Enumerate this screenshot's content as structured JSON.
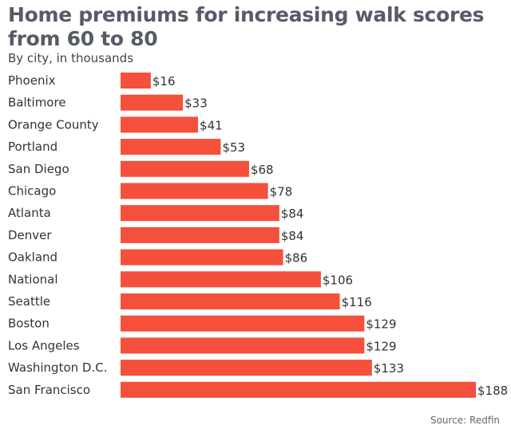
{
  "chart_data": {
    "type": "bar",
    "orientation": "horizontal",
    "title": "Home premiums for increasing walk scores from 60 to 80",
    "subtitle": "By city, in thousands",
    "source": "Source: Redfin",
    "categories": [
      "Phoenix",
      "Baltimore",
      "Orange County",
      "Portland",
      "San Diego",
      "Chicago",
      "Atlanta",
      "Denver",
      "Oakland",
      "National",
      "Seattle",
      "Boston",
      "Los Angeles",
      "Washington D.C.",
      "San Francisco"
    ],
    "values": [
      16,
      33,
      41,
      53,
      68,
      78,
      84,
      84,
      86,
      106,
      116,
      129,
      129,
      133,
      188
    ],
    "value_labels": [
      "$16",
      "$33",
      "$41",
      "$53",
      "$68",
      "$78",
      "$84",
      "$84",
      "$86",
      "$106",
      "$116",
      "$129",
      "$129",
      "$133",
      "$188"
    ],
    "xlim": [
      0,
      188
    ],
    "grid": false,
    "bar_color": "#f4503c"
  }
}
